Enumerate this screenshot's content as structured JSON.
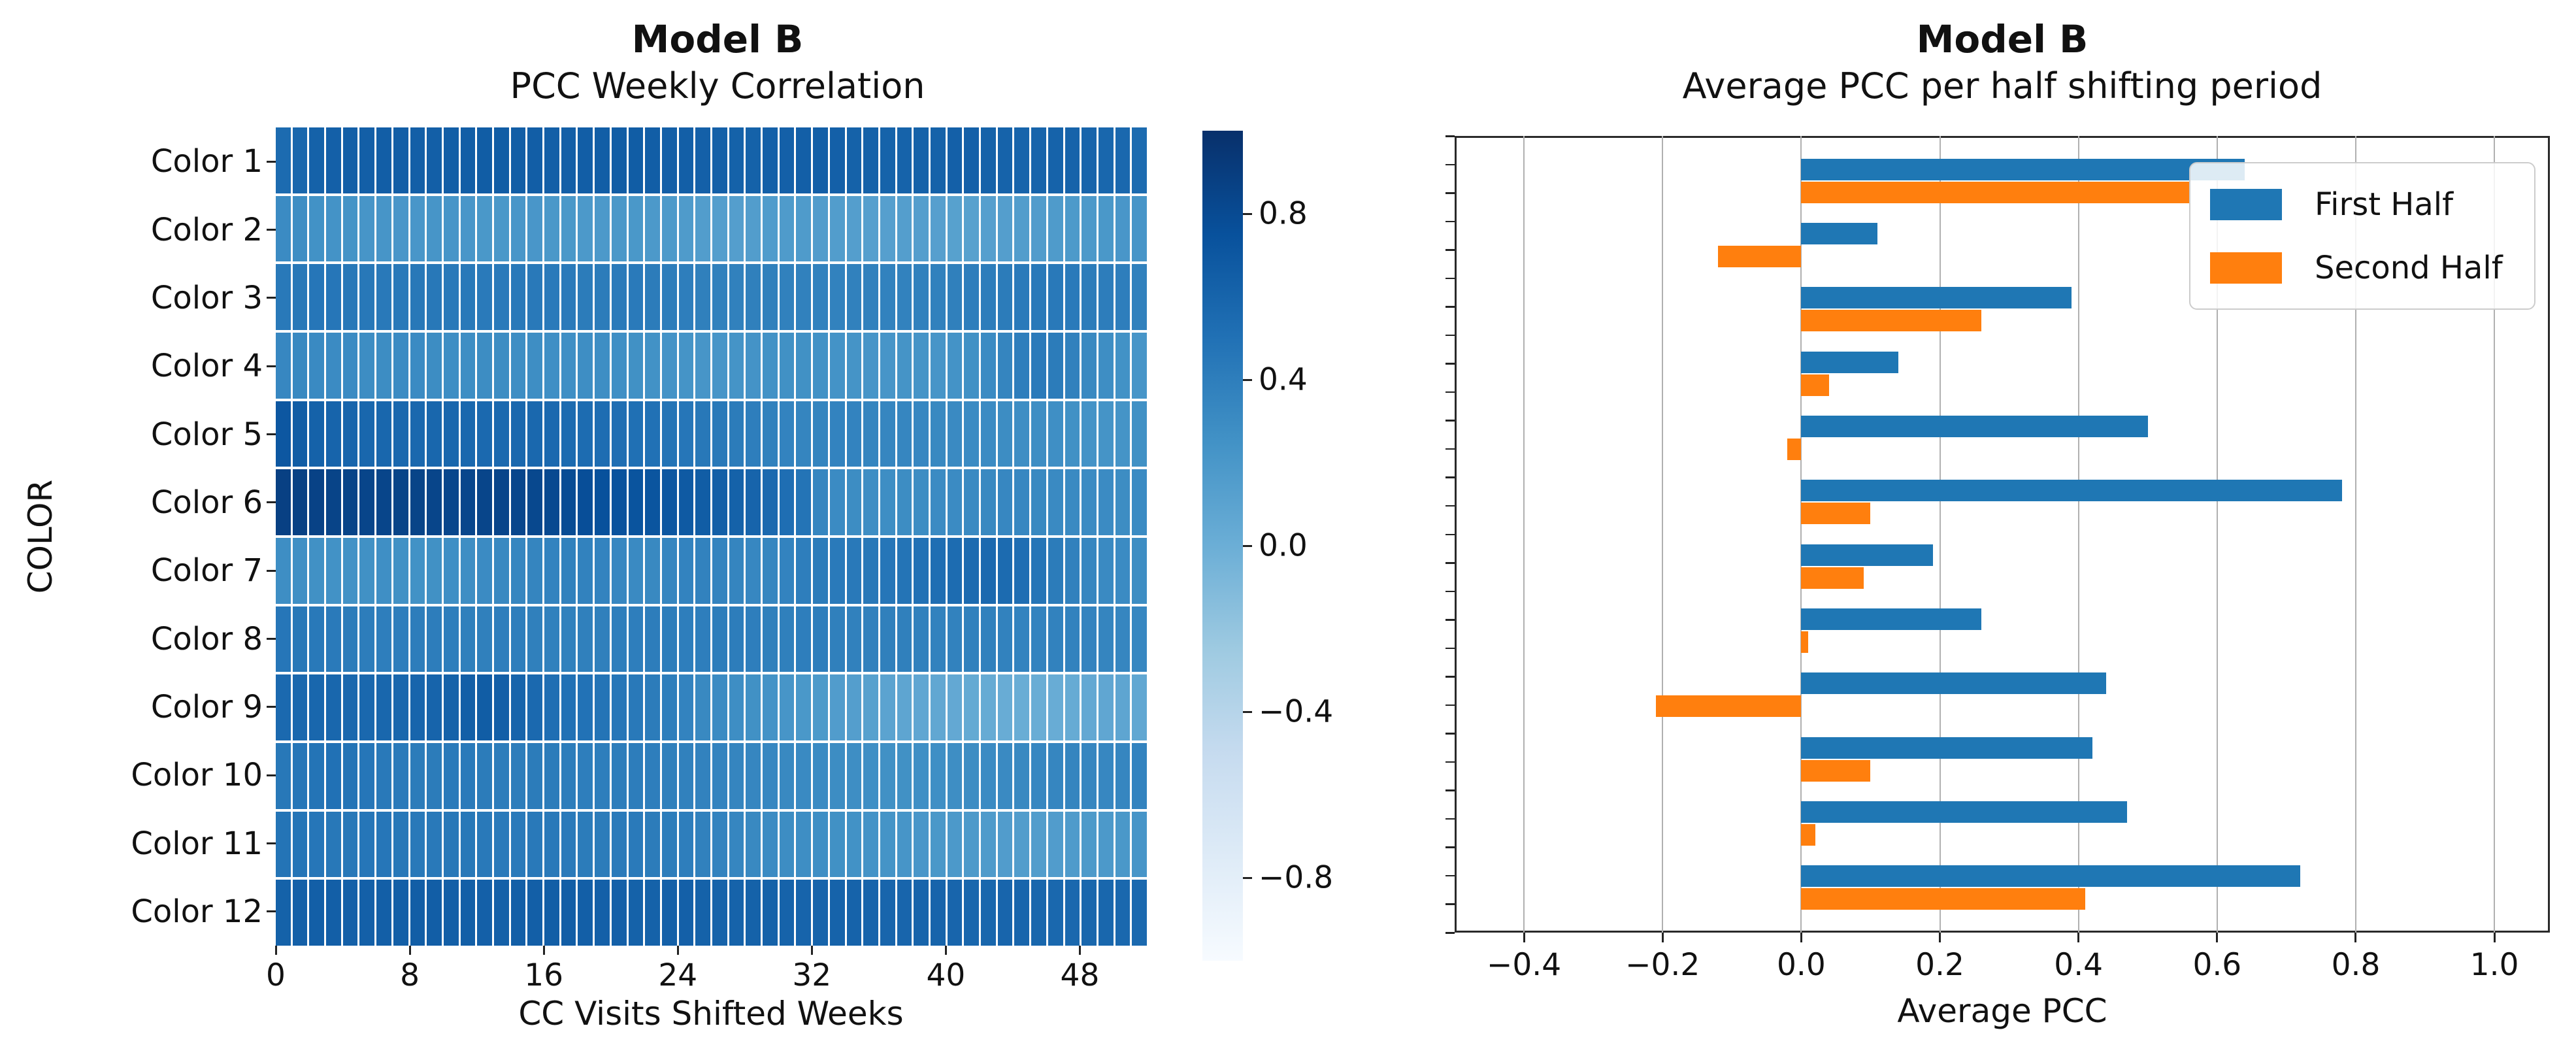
{
  "figure": {
    "background": "#ffffff"
  },
  "left_chart": {
    "suptitle": "Model B",
    "title": "PCC Weekly Correlation",
    "xlabel": "CC Visits Shifted Weeks",
    "ylabel": "COLOR"
  },
  "right_chart": {
    "suptitle": "Model B",
    "title": "Average PCC per half shifting period",
    "xlabel": "Average PCC",
    "legend": {
      "first": "First Half",
      "second": "Second Half"
    }
  },
  "colors": {
    "first_half": "#1f77b4",
    "second_half": "#ff7f0e",
    "gridline": "#b0b0b0",
    "tick": "#222222",
    "colormap_name": "Blues"
  },
  "chart_data": [
    {
      "type": "heatmap",
      "title": "Model B — PCC Weekly Correlation",
      "xlabel": "CC Visits Shifted Weeks",
      "ylabel": "COLOR",
      "x_ticks": [
        0,
        8,
        16,
        24,
        32,
        40,
        48
      ],
      "x_tick_labels": [
        "0",
        "8",
        "16",
        "24",
        "32",
        "40",
        "48"
      ],
      "x_range_weeks": [
        0,
        51
      ],
      "vmin": -1.0,
      "vmax": 1.0,
      "colormap": "Blues",
      "colorbar_ticks": [
        0.8,
        0.4,
        0.0,
        -0.4,
        -0.8
      ],
      "colorbar_tick_labels": [
        "0.8",
        "0.4",
        "0.0",
        "−0.4",
        "−0.8"
      ],
      "rows": [
        "Color 1",
        "Color 2",
        "Color 3",
        "Color 4",
        "Color 5",
        "Color 6",
        "Color 7",
        "Color 8",
        "Color 9",
        "Color 10",
        "Color 11",
        "Color 12"
      ],
      "values": [
        [
          0.55,
          0.58,
          0.62,
          0.63,
          0.64,
          0.64,
          0.65,
          0.65,
          0.64,
          0.64,
          0.65,
          0.65,
          0.66,
          0.66,
          0.65,
          0.65,
          0.64,
          0.64,
          0.65,
          0.65,
          0.66,
          0.66,
          0.65,
          0.64,
          0.64,
          0.63,
          0.63,
          0.62,
          0.62,
          0.63,
          0.63,
          0.64,
          0.64,
          0.63,
          0.62,
          0.62,
          0.61,
          0.61,
          0.62,
          0.62,
          0.63,
          0.63,
          0.62,
          0.61,
          0.6,
          0.6,
          0.61,
          0.61,
          0.6,
          0.58,
          0.57,
          0.55
        ],
        [
          0.3,
          0.28,
          0.25,
          0.24,
          0.23,
          0.22,
          0.22,
          0.21,
          0.21,
          0.22,
          0.22,
          0.21,
          0.2,
          0.2,
          0.21,
          0.21,
          0.2,
          0.2,
          0.19,
          0.19,
          0.2,
          0.2,
          0.19,
          0.18,
          0.17,
          0.15,
          0.14,
          0.14,
          0.15,
          0.16,
          0.17,
          0.17,
          0.16,
          0.15,
          0.14,
          0.13,
          0.13,
          0.14,
          0.14,
          0.13,
          0.12,
          0.12,
          0.13,
          0.14,
          0.15,
          0.16,
          0.17,
          0.18,
          0.19,
          0.2,
          0.21,
          0.22
        ],
        [
          0.44,
          0.45,
          0.46,
          0.46,
          0.45,
          0.45,
          0.44,
          0.44,
          0.45,
          0.45,
          0.44,
          0.44,
          0.43,
          0.43,
          0.44,
          0.44,
          0.43,
          0.43,
          0.42,
          0.42,
          0.43,
          0.43,
          0.42,
          0.41,
          0.4,
          0.39,
          0.38,
          0.38,
          0.39,
          0.39,
          0.38,
          0.38,
          0.37,
          0.37,
          0.38,
          0.38,
          0.37,
          0.37,
          0.38,
          0.38,
          0.39,
          0.4,
          0.41,
          0.42,
          0.43,
          0.44,
          0.44,
          0.43,
          0.42,
          0.41,
          0.4,
          0.38
        ],
        [
          0.33,
          0.32,
          0.31,
          0.3,
          0.3,
          0.29,
          0.29,
          0.3,
          0.3,
          0.29,
          0.28,
          0.28,
          0.29,
          0.29,
          0.28,
          0.28,
          0.27,
          0.27,
          0.28,
          0.28,
          0.27,
          0.26,
          0.25,
          0.24,
          0.23,
          0.22,
          0.22,
          0.23,
          0.24,
          0.25,
          0.26,
          0.26,
          0.25,
          0.24,
          0.23,
          0.22,
          0.22,
          0.23,
          0.23,
          0.22,
          0.24,
          0.26,
          0.3,
          0.35,
          0.4,
          0.43,
          0.42,
          0.38,
          0.32,
          0.28,
          0.25,
          0.22
        ],
        [
          0.7,
          0.66,
          0.62,
          0.6,
          0.59,
          0.58,
          0.58,
          0.57,
          0.57,
          0.58,
          0.58,
          0.57,
          0.56,
          0.56,
          0.57,
          0.57,
          0.56,
          0.55,
          0.54,
          0.53,
          0.52,
          0.51,
          0.5,
          0.48,
          0.46,
          0.45,
          0.44,
          0.42,
          0.4,
          0.38,
          0.36,
          0.35,
          0.35,
          0.36,
          0.36,
          0.35,
          0.34,
          0.34,
          0.33,
          0.32,
          0.31,
          0.3,
          0.3,
          0.29,
          0.28,
          0.28,
          0.27,
          0.26,
          0.24,
          0.23,
          0.23,
          0.26
        ],
        [
          0.88,
          0.87,
          0.86,
          0.85,
          0.85,
          0.84,
          0.84,
          0.85,
          0.85,
          0.84,
          0.83,
          0.83,
          0.84,
          0.84,
          0.83,
          0.82,
          0.81,
          0.79,
          0.77,
          0.75,
          0.74,
          0.73,
          0.72,
          0.7,
          0.68,
          0.66,
          0.64,
          0.62,
          0.6,
          0.56,
          0.52,
          0.48,
          0.34,
          0.3,
          0.29,
          0.28,
          0.28,
          0.29,
          0.29,
          0.3,
          0.3,
          0.31,
          0.32,
          0.33,
          0.33,
          0.32,
          0.31,
          0.31,
          0.3,
          0.3,
          0.29,
          0.3
        ],
        [
          0.28,
          0.27,
          0.26,
          0.25,
          0.25,
          0.26,
          0.27,
          0.26,
          0.25,
          0.26,
          0.27,
          0.28,
          0.3,
          0.32,
          0.34,
          0.35,
          0.36,
          0.38,
          0.37,
          0.36,
          0.33,
          0.31,
          0.32,
          0.34,
          0.36,
          0.37,
          0.36,
          0.35,
          0.33,
          0.34,
          0.36,
          0.4,
          0.42,
          0.43,
          0.44,
          0.45,
          0.46,
          0.48,
          0.5,
          0.52,
          0.54,
          0.55,
          0.56,
          0.55,
          0.52,
          0.47,
          0.42,
          0.38,
          0.34,
          0.31,
          0.3,
          0.29
        ],
        [
          0.46,
          0.45,
          0.44,
          0.43,
          0.42,
          0.41,
          0.4,
          0.4,
          0.41,
          0.41,
          0.4,
          0.39,
          0.39,
          0.4,
          0.4,
          0.39,
          0.38,
          0.38,
          0.39,
          0.39,
          0.4,
          0.4,
          0.41,
          0.41,
          0.4,
          0.4,
          0.41,
          0.41,
          0.4,
          0.39,
          0.39,
          0.4,
          0.4,
          0.39,
          0.38,
          0.38,
          0.39,
          0.39,
          0.38,
          0.37,
          0.37,
          0.38,
          0.38,
          0.37,
          0.36,
          0.36,
          0.37,
          0.37,
          0.36,
          0.35,
          0.34,
          0.33
        ],
        [
          0.56,
          0.57,
          0.58,
          0.58,
          0.57,
          0.57,
          0.58,
          0.58,
          0.59,
          0.6,
          0.62,
          0.64,
          0.66,
          0.64,
          0.6,
          0.56,
          0.52,
          0.5,
          0.49,
          0.48,
          0.46,
          0.44,
          0.42,
          0.4,
          0.36,
          0.32,
          0.3,
          0.28,
          0.26,
          0.24,
          0.22,
          0.2,
          0.18,
          0.16,
          0.14,
          0.12,
          0.1,
          0.08,
          0.07,
          0.06,
          0.05,
          0.04,
          0.03,
          0.02,
          0.01,
          0.01,
          0.02,
          0.03,
          0.05,
          0.07,
          0.08,
          0.06
        ],
        [
          0.45,
          0.46,
          0.48,
          0.5,
          0.48,
          0.46,
          0.44,
          0.43,
          0.42,
          0.42,
          0.43,
          0.43,
          0.42,
          0.41,
          0.41,
          0.42,
          0.42,
          0.41,
          0.4,
          0.4,
          0.41,
          0.41,
          0.4,
          0.39,
          0.38,
          0.37,
          0.36,
          0.35,
          0.34,
          0.33,
          0.32,
          0.31,
          0.3,
          0.29,
          0.28,
          0.27,
          0.26,
          0.26,
          0.27,
          0.27,
          0.28,
          0.29,
          0.3,
          0.31,
          0.32,
          0.33,
          0.34,
          0.35,
          0.34,
          0.33,
          0.34,
          0.36
        ],
        [
          0.48,
          0.47,
          0.46,
          0.45,
          0.45,
          0.46,
          0.46,
          0.45,
          0.44,
          0.44,
          0.45,
          0.45,
          0.44,
          0.43,
          0.43,
          0.44,
          0.44,
          0.43,
          0.42,
          0.42,
          0.43,
          0.43,
          0.42,
          0.41,
          0.4,
          0.38,
          0.36,
          0.34,
          0.32,
          0.3,
          0.29,
          0.28,
          0.27,
          0.26,
          0.25,
          0.24,
          0.23,
          0.22,
          0.21,
          0.2,
          0.19,
          0.18,
          0.17,
          0.16,
          0.15,
          0.15,
          0.16,
          0.17,
          0.18,
          0.19,
          0.2,
          0.22
        ],
        [
          0.62,
          0.63,
          0.64,
          0.64,
          0.63,
          0.63,
          0.64,
          0.64,
          0.65,
          0.65,
          0.64,
          0.64,
          0.63,
          0.63,
          0.64,
          0.64,
          0.65,
          0.65,
          0.64,
          0.63,
          0.63,
          0.62,
          0.62,
          0.63,
          0.63,
          0.62,
          0.61,
          0.61,
          0.62,
          0.62,
          0.61,
          0.6,
          0.6,
          0.61,
          0.61,
          0.6,
          0.59,
          0.59,
          0.6,
          0.6,
          0.59,
          0.58,
          0.58,
          0.59,
          0.59,
          0.58,
          0.57,
          0.57,
          0.58,
          0.58,
          0.57,
          0.56
        ]
      ]
    },
    {
      "type": "bar",
      "orientation": "horizontal",
      "title": "Model B — Average PCC per half shifting period",
      "xlabel": "Average PCC",
      "categories": [
        "Color 1",
        "Color 2",
        "Color 3",
        "Color 4",
        "Color 5",
        "Color 6",
        "Color 7",
        "Color 8",
        "Color 9",
        "Color 10",
        "Color 11",
        "Color 12"
      ],
      "series": [
        {
          "name": "First Half",
          "color": "#1f77b4",
          "values": [
            0.64,
            0.11,
            0.39,
            0.14,
            0.5,
            0.78,
            0.19,
            0.26,
            0.44,
            0.42,
            0.47,
            0.72
          ]
        },
        {
          "name": "Second Half",
          "color": "#ff7f0e",
          "values": [
            0.56,
            -0.12,
            0.26,
            0.04,
            -0.02,
            0.1,
            0.09,
            0.01,
            -0.21,
            0.1,
            0.02,
            0.41
          ]
        }
      ],
      "xlim": [
        -0.5,
        1.08
      ],
      "x_ticks": [
        -0.4,
        -0.2,
        0.0,
        0.2,
        0.4,
        0.6,
        0.8,
        1.0
      ],
      "x_tick_labels": [
        "−0.4",
        "−0.2",
        "0.0",
        "0.2",
        "0.4",
        "0.6",
        "0.8",
        "1.0"
      ],
      "grid": true,
      "legend_position": "upper right"
    }
  ]
}
